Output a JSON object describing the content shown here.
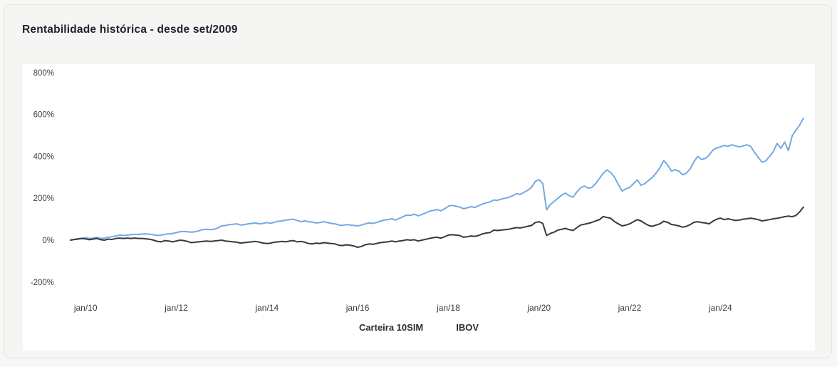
{
  "header": {
    "title": "Rentabilidade histórica - desde set/2009"
  },
  "colors": {
    "page_background": "#f7f7f5",
    "card_background": "#f5f5f3",
    "card_border": "#e4e3e1",
    "panel_background": "#ffffff",
    "title_text": "#23232f",
    "axis_text": "#3f3f46",
    "series_carteira": "#74a9e3",
    "series_ibov": "#36393d"
  },
  "chart_data": {
    "type": "line",
    "title": "Rentabilidade histórica - desde set/2009",
    "x_unit": "month",
    "x_start": "set/2009",
    "x_end": "nov/2025",
    "grid": false,
    "legend_position": "bottom",
    "ylim": [
      -200,
      800
    ],
    "yticks": [
      {
        "label": "800%",
        "value": 800
      },
      {
        "label": "600%",
        "value": 600
      },
      {
        "label": "400%",
        "value": 400
      },
      {
        "label": "200%",
        "value": 200
      },
      {
        "label": "0%",
        "value": 0
      },
      {
        "label": "-200%",
        "value": -200
      }
    ],
    "xticks": [
      {
        "label": "jan/10",
        "month_index": 4
      },
      {
        "label": "jan/12",
        "month_index": 28
      },
      {
        "label": "jan/14",
        "month_index": 52
      },
      {
        "label": "jan/16",
        "month_index": 76
      },
      {
        "label": "jan/18",
        "month_index": 100
      },
      {
        "label": "jan/20",
        "month_index": 124
      },
      {
        "label": "jan/22",
        "month_index": 148
      },
      {
        "label": "jan/24",
        "month_index": 172
      }
    ],
    "series": [
      {
        "name": "Carteira 10SIM",
        "color": "#74a9e3",
        "unit": "%",
        "values": [
          0,
          4,
          7,
          9,
          12,
          8,
          10,
          14,
          8,
          10,
          14,
          16,
          20,
          24,
          22,
          24,
          26,
          28,
          27,
          30,
          30,
          28,
          26,
          22,
          24,
          28,
          30,
          32,
          36,
          40,
          42,
          40,
          38,
          40,
          45,
          50,
          52,
          50,
          52,
          58,
          68,
          70,
          74,
          76,
          78,
          72,
          74,
          78,
          80,
          82,
          78,
          80,
          84,
          80,
          86,
          90,
          92,
          96,
          98,
          100,
          94,
          88,
          92,
          88,
          86,
          82,
          84,
          88,
          84,
          80,
          78,
          72,
          70,
          74,
          72,
          70,
          68,
          72,
          78,
          82,
          80,
          84,
          90,
          96,
          98,
          102,
          96,
          104,
          112,
          120,
          118,
          124,
          116,
          122,
          130,
          138,
          142,
          146,
          140,
          150,
          162,
          166,
          162,
          158,
          150,
          154,
          160,
          156,
          164,
          172,
          178,
          182,
          192,
          190,
          196,
          200,
          204,
          212,
          222,
          218,
          228,
          238,
          252,
          280,
          289,
          270,
          145,
          170,
          185,
          200,
          215,
          225,
          212,
          205,
          230,
          250,
          258,
          248,
          252,
          270,
          295,
          320,
          335,
          322,
          300,
          265,
          234,
          245,
          252,
          270,
          288,
          262,
          270,
          285,
          300,
          320,
          345,
          380,
          360,
          330,
          336,
          330,
          312,
          320,
          340,
          375,
          400,
          385,
          390,
          405,
          430,
          440,
          445,
          452,
          448,
          455,
          450,
          445,
          450,
          455,
          448,
          420,
          395,
          372,
          378,
          400,
          422,
          462,
          438,
          468,
          428,
          498,
          525,
          550,
          583
        ]
      },
      {
        "name": "IBOV",
        "color": "#36393d",
        "unit": "%",
        "values": [
          0,
          3,
          5,
          8,
          6,
          2,
          5,
          8,
          2,
          0,
          5,
          3,
          8,
          10,
          8,
          10,
          8,
          10,
          8,
          8,
          6,
          4,
          0,
          -6,
          -8,
          -2,
          -4,
          -8,
          -4,
          0,
          -2,
          -6,
          -12,
          -10,
          -8,
          -6,
          -4,
          -6,
          -4,
          -2,
          0,
          -4,
          -6,
          -8,
          -10,
          -14,
          -12,
          -10,
          -8,
          -6,
          -10,
          -14,
          -16,
          -14,
          -10,
          -8,
          -6,
          -8,
          -4,
          -2,
          -8,
          -6,
          -10,
          -16,
          -18,
          -14,
          -16,
          -12,
          -14,
          -16,
          -18,
          -24,
          -26,
          -22,
          -24,
          -28,
          -34,
          -30,
          -22,
          -18,
          -20,
          -16,
          -12,
          -10,
          -8,
          -4,
          -8,
          -4,
          -2,
          2,
          0,
          2,
          -4,
          0,
          4,
          8,
          12,
          14,
          10,
          16,
          24,
          26,
          24,
          22,
          14,
          16,
          20,
          18,
          22,
          30,
          34,
          36,
          48,
          46,
          48,
          50,
          52,
          56,
          60,
          58,
          62,
          66,
          70,
          84,
          88,
          80,
          22,
          32,
          38,
          48,
          52,
          56,
          50,
          46,
          60,
          72,
          76,
          80,
          85,
          92,
          98,
          113,
          108,
          104,
          88,
          78,
          68,
          72,
          78,
          88,
          98,
          92,
          80,
          70,
          66,
          72,
          78,
          90,
          85,
          75,
          72,
          68,
          62,
          66,
          74,
          85,
          88,
          84,
          82,
          78,
          90,
          100,
          105,
          98,
          102,
          98,
          94,
          96,
          100,
          102,
          105,
          102,
          98,
          92,
          95,
          98,
          102,
          104,
          108,
          112,
          115,
          112,
          118,
          135,
          158
        ]
      }
    ]
  }
}
